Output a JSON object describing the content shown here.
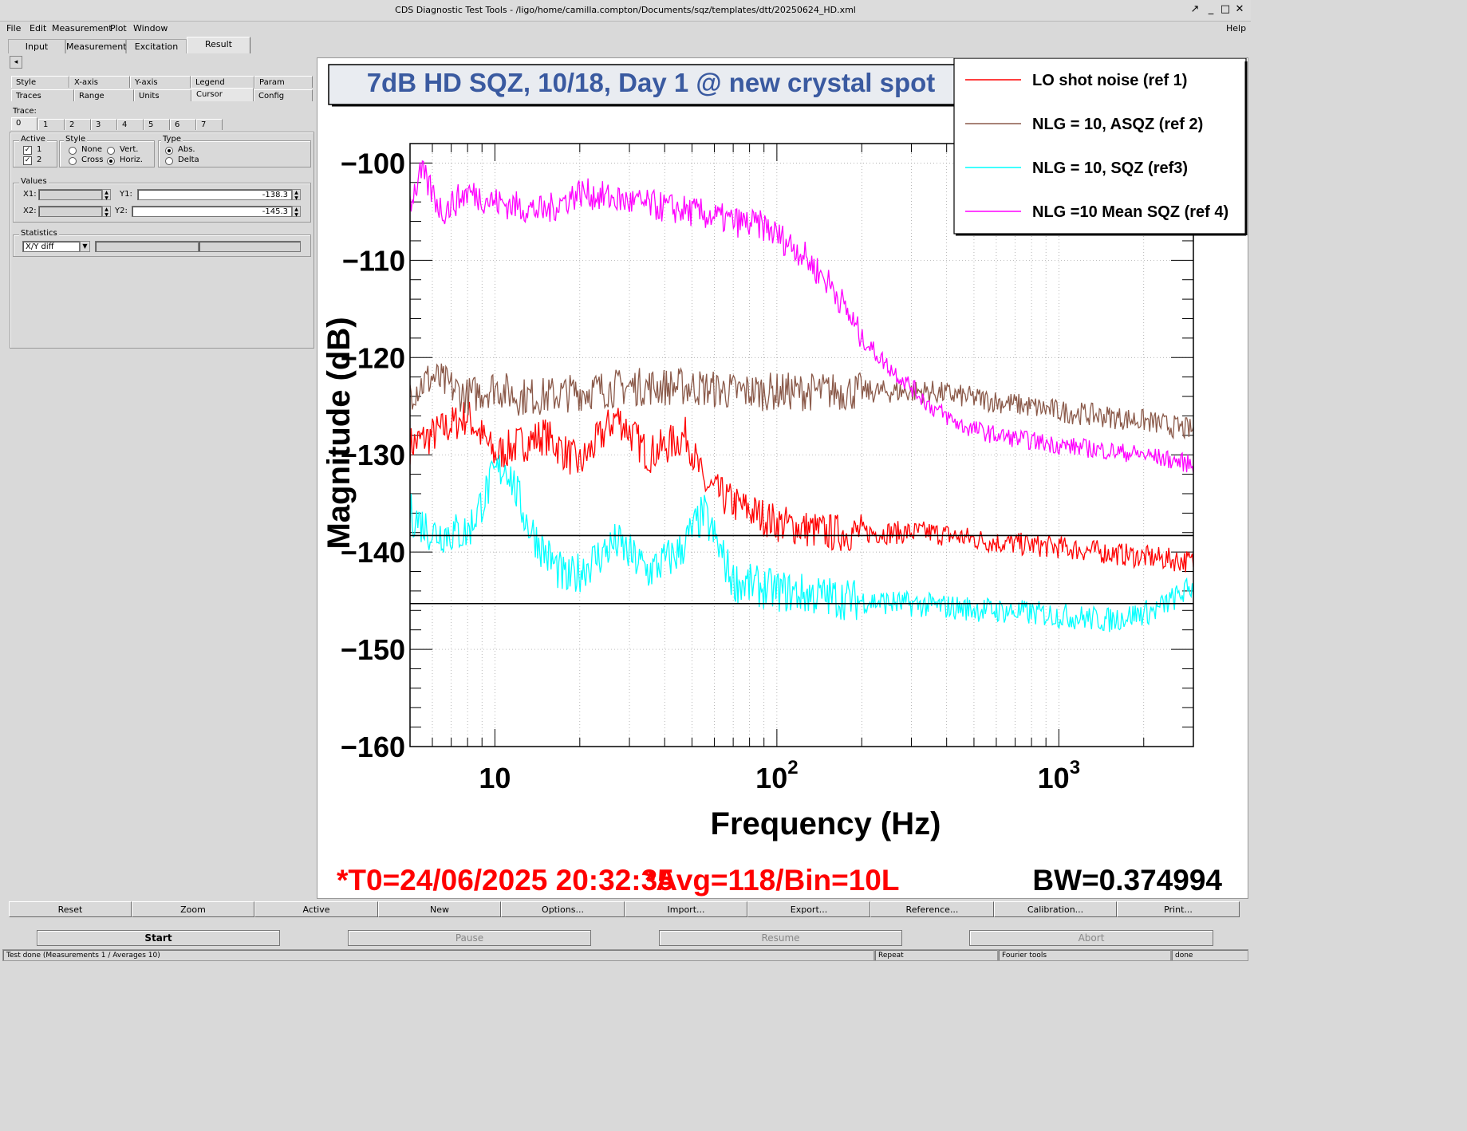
{
  "window": {
    "title": "CDS Diagnostic Test Tools - /ligo/home/camilla.compton/Documents/sqz/templates/dtt/20250624_HD.xml",
    "buttons": [
      "↗",
      "_",
      "□",
      "✕"
    ]
  },
  "menubar": {
    "items": [
      "File",
      "Edit",
      "Measurement",
      "Plot",
      "Window"
    ],
    "help": "Help"
  },
  "tabs": {
    "items": [
      "Input",
      "Measurement",
      "Excitation",
      "Result"
    ],
    "active": "Result"
  },
  "panel": {
    "scroll_arrow": "◂",
    "subtabs_row1": [
      "Style",
      "X-axis",
      "Y-axis",
      "Legend",
      "Param"
    ],
    "subtabs_row2": [
      "Traces",
      "Range",
      "Units",
      "Cursor",
      "Config"
    ],
    "active_subtab": "Cursor",
    "trace_label": "Trace:",
    "trace_tabs": [
      "0",
      "1",
      "2",
      "3",
      "4",
      "5",
      "6",
      "7"
    ],
    "active": {
      "label": "Active",
      "items": [
        "1",
        "2"
      ]
    },
    "style": {
      "label": "Style",
      "options": [
        "None",
        "Vert.",
        "Cross",
        "Horiz."
      ],
      "selected": "Horiz."
    },
    "type": {
      "label": "Type",
      "options": [
        "Abs.",
        "Delta"
      ],
      "selected": "Abs."
    },
    "values": {
      "label": "Values",
      "x1_label": "X1:",
      "x2_label": "X2:",
      "y1_label": "Y1:",
      "y2_label": "Y2:",
      "x1": "",
      "x2": "",
      "y1": "-138.3",
      "y2": "-145.3"
    },
    "statistics": {
      "label": "Statistics",
      "selected": "X/Y diff"
    }
  },
  "plot": {
    "title": "7dB HD SQZ, 10/18, Day 1 @ new crystal spot",
    "footer_left": "*T0=24/06/2025 20:32:35",
    "footer_mid": "*Avg=118/Bin=10L",
    "footer_right": "BW=0.374994",
    "cursor_lines": [
      -138.3,
      -145.3
    ],
    "colors": {
      "ref1": "#ff0000",
      "ref2": "#8b5a4a",
      "ref3": "#00ffff",
      "ref4": "#ff00ff",
      "title_text": "#3a5aa0",
      "footer": "#ff0000"
    }
  },
  "chart_data": {
    "type": "line",
    "title": "7dB HD SQZ, 10/18, Day 1 @ new crystal spot",
    "xlabel": "Frequency (Hz)",
    "ylabel": "Magnitude (dB)",
    "xscale": "log",
    "xlim": [
      5,
      3000
    ],
    "ylim": [
      -160,
      -98
    ],
    "x_tick_labels": [
      "10",
      "10",
      "10"
    ],
    "x_tick_exponents": [
      "",
      "2",
      "3"
    ],
    "y_ticks": [
      -100,
      -110,
      -120,
      -130,
      -140,
      -150,
      -160
    ],
    "y_tick_labels": [
      "−100",
      "−110",
      "−120",
      "−130",
      "−140",
      "−150",
      "−160"
    ],
    "grid": true,
    "legend_position": "top-right",
    "series": [
      {
        "name": "LO shot noise (ref 1)",
        "color": "#ff0000",
        "x": [
          5,
          6,
          8,
          10,
          12,
          15,
          20,
          27,
          35,
          48,
          55,
          70,
          100,
          150,
          250,
          350,
          600,
          1000,
          2000,
          3000
        ],
        "y": [
          -129,
          -128,
          -126,
          -130,
          -129,
          -128,
          -131,
          -126,
          -130,
          -128,
          -133,
          -135,
          -137,
          -138,
          -138,
          -138,
          -139,
          -139.5,
          -140.5,
          -141
        ]
      },
      {
        "name": "NLG = 10, ASQZ (ref 2)",
        "color": "#8b5a4a",
        "x": [
          5,
          6,
          8,
          10,
          12,
          15,
          20,
          30,
          50,
          70,
          100,
          200,
          350,
          600,
          1000,
          2000,
          3000
        ],
        "y": [
          -123.5,
          -122,
          -124,
          -123,
          -124,
          -124,
          -123.5,
          -123,
          -123,
          -123.5,
          -123.5,
          -123.5,
          -123.5,
          -124.5,
          -125.5,
          -126.5,
          -127.5
        ]
      },
      {
        "name": "NLG = 10, SQZ (ref3)",
        "color": "#00ffff",
        "x": [
          5,
          6,
          8,
          10,
          11,
          13,
          15,
          18,
          22,
          27,
          35,
          45,
          55,
          70,
          100,
          200,
          350,
          600,
          1000,
          1500,
          2200,
          3000
        ],
        "y": [
          -136,
          -138,
          -138,
          -132,
          -131,
          -137,
          -140,
          -143,
          -141,
          -139,
          -142,
          -140,
          -136,
          -143,
          -144,
          -145,
          -145.5,
          -146,
          -146.5,
          -147,
          -146,
          -143.5
        ]
      },
      {
        "name": "NLG =10 Mean SQZ (ref 4)",
        "color": "#ff00ff",
        "x": [
          5,
          5.5,
          6.5,
          8,
          10,
          15,
          20,
          30,
          50,
          70,
          90,
          120,
          160,
          200,
          250,
          300,
          350,
          450,
          600,
          1000,
          2000,
          3000
        ],
        "y": [
          -104,
          -101,
          -105,
          -103,
          -104,
          -105,
          -103,
          -104,
          -105,
          -106,
          -106.5,
          -109,
          -113,
          -118,
          -121,
          -123,
          -125,
          -127,
          -128,
          -129,
          -130,
          -131
        ]
      }
    ]
  },
  "buttons_row": [
    "Reset",
    "Zoom",
    "Active",
    "New",
    "Options...",
    "Import...",
    "Export...",
    "Reference...",
    "Calibration...",
    "Print..."
  ],
  "control_buttons": [
    "Start",
    "Pause",
    "Resume",
    "Abort"
  ],
  "statusbar": [
    "Test done (Measurements 1 / Averages 10)",
    "Repeat",
    "Fourier tools",
    "done"
  ]
}
